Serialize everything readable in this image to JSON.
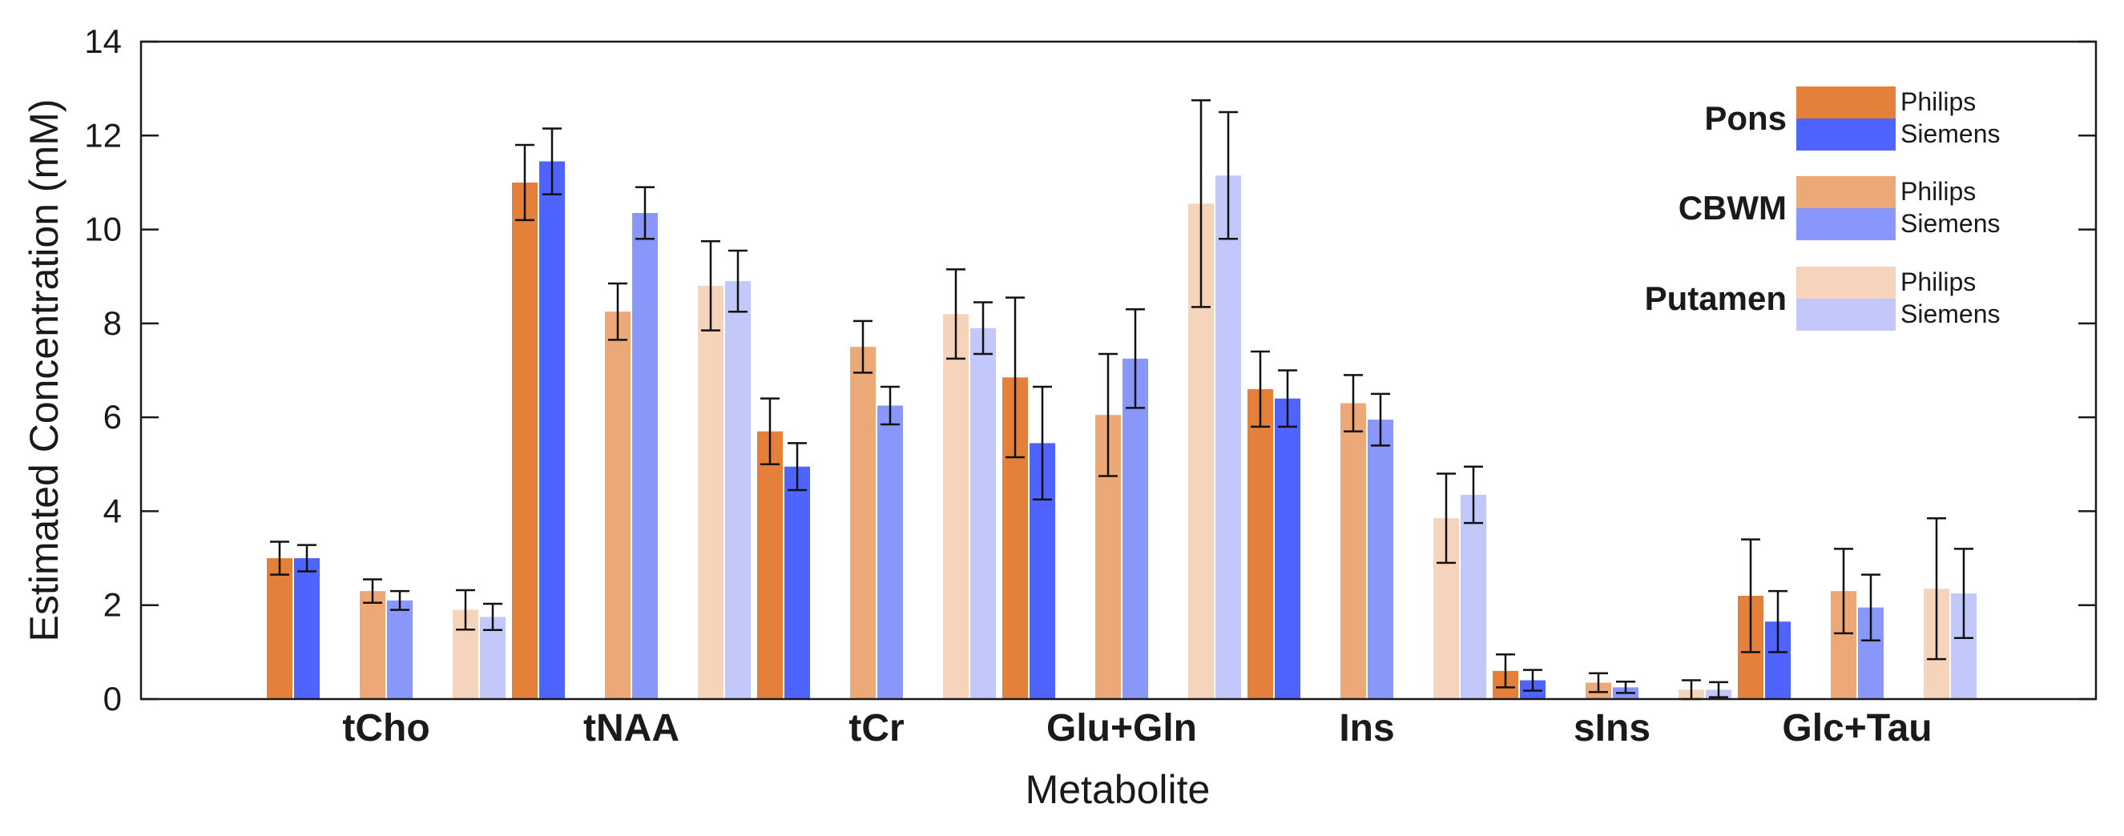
{
  "chart_data": {
    "type": "bar",
    "title": "",
    "xlabel": "Metabolite",
    "ylabel": "Estimated Concentration (mM)",
    "ylim": [
      0,
      14
    ],
    "yticks": [
      "0",
      "2",
      "4",
      "6",
      "8",
      "10",
      "12",
      "14"
    ],
    "categories": [
      "tCho",
      "tNAA",
      "tCr",
      "Glu+Gln",
      "Ins",
      "sIns",
      "Glc+Tau"
    ],
    "legend_position": "top-right",
    "legend_groups": [
      {
        "name": "Pons",
        "entries": [
          "Philips",
          "Siemens"
        ]
      },
      {
        "name": "CBWM",
        "entries": [
          "Philips",
          "Siemens"
        ]
      },
      {
        "name": "Putamen",
        "entries": [
          "Philips",
          "Siemens"
        ]
      }
    ],
    "series": [
      {
        "name": "Pons Philips",
        "color": "#E4803A",
        "values": [
          3.0,
          11.0,
          5.7,
          6.85,
          6.6,
          0.6,
          2.2
        ],
        "errors": [
          0.35,
          0.8,
          0.7,
          1.7,
          0.8,
          0.35,
          1.2
        ]
      },
      {
        "name": "Pons Siemens",
        "color": "#4F63FF",
        "values": [
          3.0,
          11.45,
          4.95,
          5.45,
          6.4,
          0.4,
          1.65
        ],
        "errors": [
          0.28,
          0.7,
          0.5,
          1.2,
          0.6,
          0.22,
          0.65
        ]
      },
      {
        "name": "CBWM Philips",
        "color": "#EDA877",
        "values": [
          2.3,
          8.25,
          7.5,
          6.05,
          6.3,
          0.35,
          2.3
        ],
        "errors": [
          0.25,
          0.6,
          0.55,
          1.3,
          0.6,
          0.2,
          0.9
        ]
      },
      {
        "name": "CBWM Siemens",
        "color": "#8996FA",
        "values": [
          2.1,
          10.35,
          6.25,
          7.25,
          5.95,
          0.25,
          1.95
        ],
        "errors": [
          0.2,
          0.55,
          0.4,
          1.05,
          0.55,
          0.12,
          0.7
        ]
      },
      {
        "name": "Putamen Philips",
        "color": "#F6D4BB",
        "values": [
          1.9,
          8.8,
          8.2,
          10.55,
          3.85,
          0.2,
          2.35
        ],
        "errors": [
          0.42,
          0.95,
          0.95,
          2.2,
          0.95,
          0.2,
          1.5
        ]
      },
      {
        "name": "Putamen Siemens",
        "color": "#C3C8FB",
        "values": [
          1.75,
          8.9,
          7.9,
          11.15,
          4.35,
          0.2,
          2.25
        ],
        "errors": [
          0.28,
          0.65,
          0.55,
          1.35,
          0.6,
          0.16,
          0.95
        ]
      }
    ]
  }
}
